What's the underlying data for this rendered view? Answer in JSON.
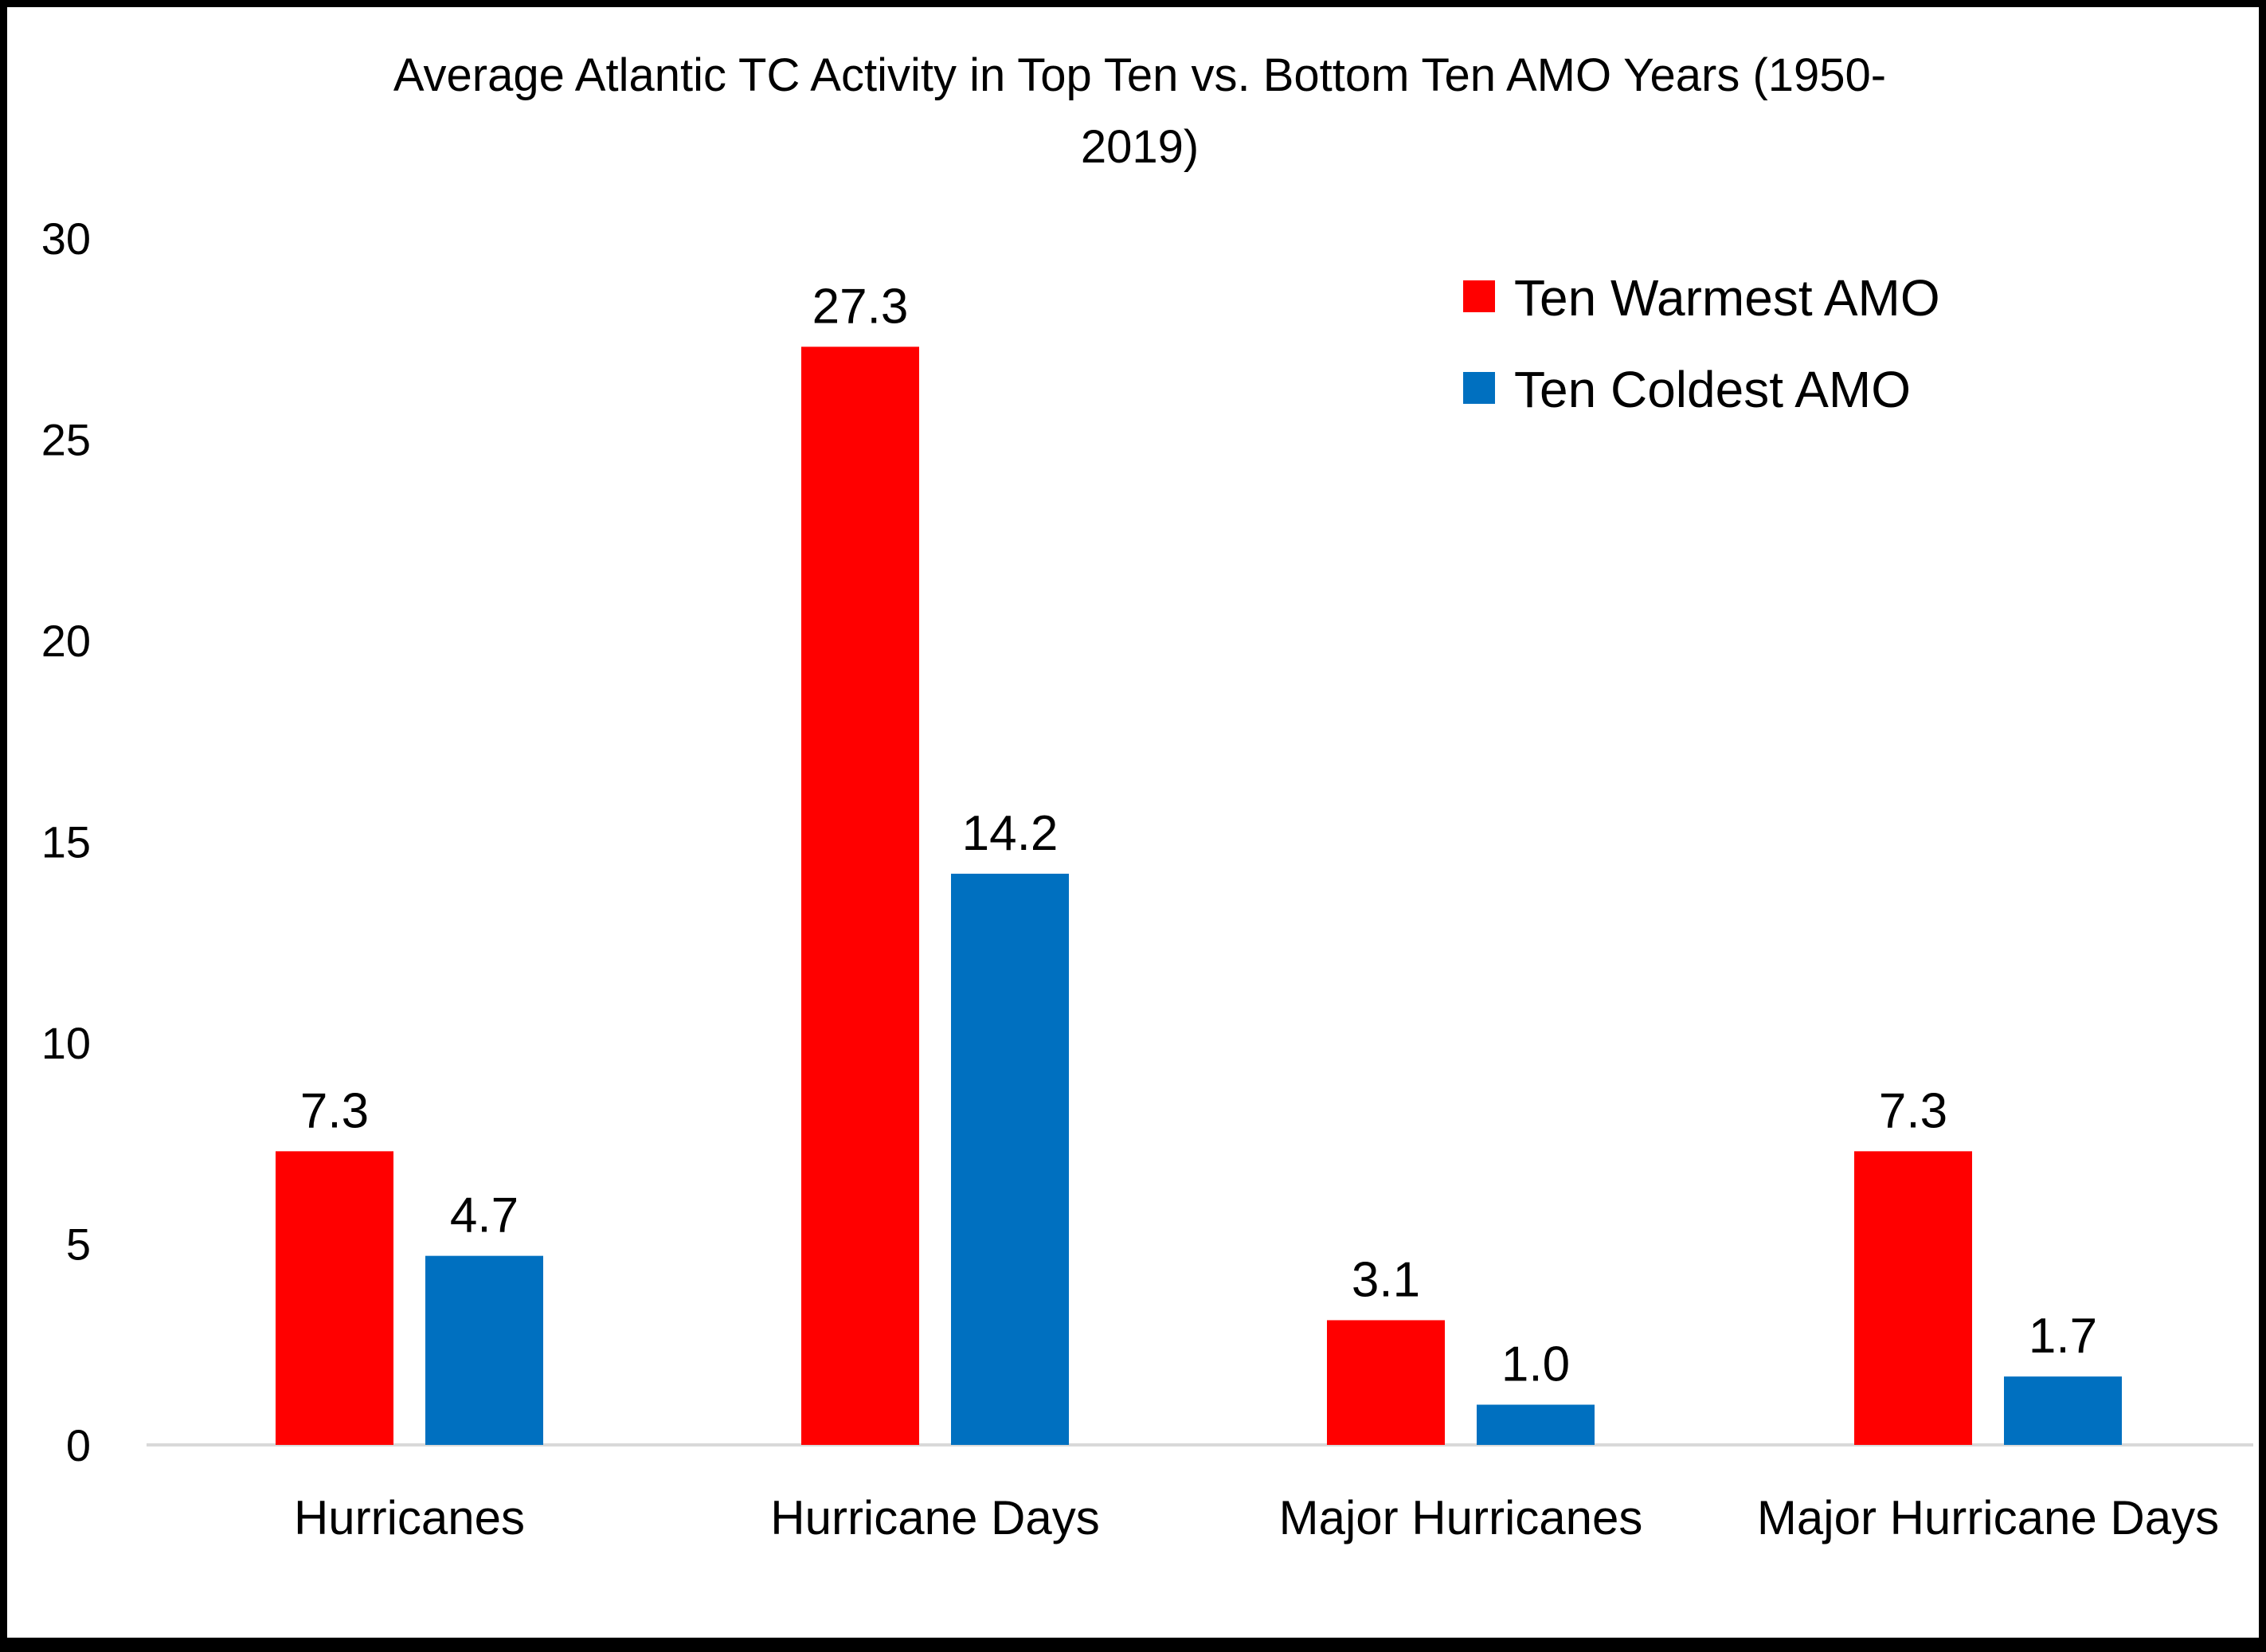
{
  "chart_data": {
    "type": "bar",
    "title_lines": [
      "Average Atlantic TC Activity in Top Ten vs. Bottom Ten AMO Years (1950-",
      "2019)"
    ],
    "categories": [
      "Hurricanes",
      "Hurricane Days",
      "Major Hurricanes",
      "Major Hurricane Days"
    ],
    "series": [
      {
        "name": "Ten Warmest AMO",
        "color": "#ff0000",
        "values": [
          7.3,
          27.3,
          3.1,
          7.3
        ],
        "labels": [
          "7.3",
          "27.3",
          "3.1",
          "7.3"
        ]
      },
      {
        "name": "Ten Coldest AMO",
        "color": "#0070c0",
        "values": [
          4.7,
          14.2,
          1.0,
          1.7
        ],
        "labels": [
          "4.7",
          "14.2",
          "1.0",
          "1.7"
        ]
      }
    ],
    "yticks": [
      0,
      5,
      10,
      15,
      20,
      25,
      30
    ],
    "ylim": [
      0,
      30
    ],
    "grid": false,
    "legend": "top-right"
  }
}
